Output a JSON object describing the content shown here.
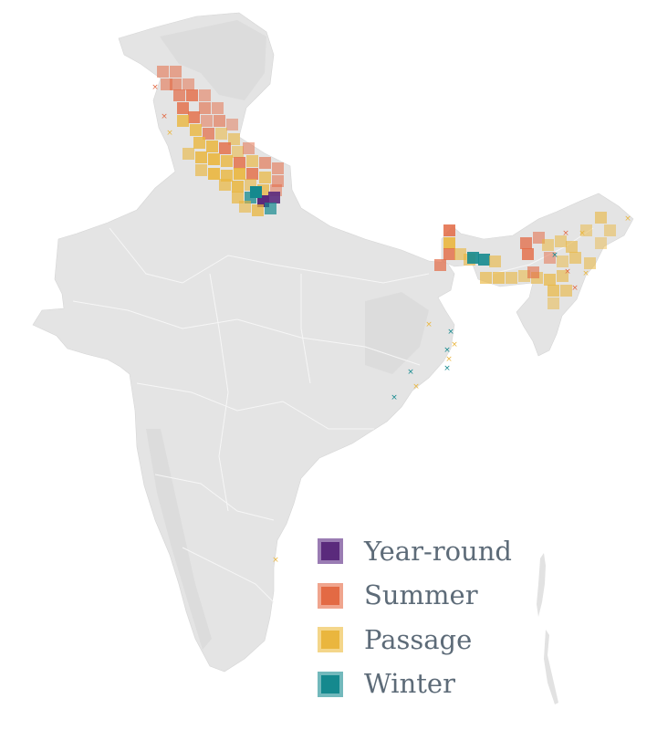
{
  "legend": {
    "items": [
      {
        "label": "Year-round",
        "color": "#5a2a7c",
        "border": "#9a7cb3"
      },
      {
        "label": "Summer",
        "color": "#e36a44",
        "border": "#f0a58e"
      },
      {
        "label": "Passage",
        "color": "#eab63e",
        "border": "#f4d68a"
      },
      {
        "label": "Winter",
        "color": "#15898e",
        "border": "#72b9bc"
      }
    ]
  },
  "colors": {
    "land": "#e4e4e4",
    "relief": "#d8d8d8",
    "borders": "#f6f6f6",
    "year_round": "#5a2a7c",
    "summer": "#e36a44",
    "passage": "#eab63e",
    "winter": "#15898e"
  },
  "icons": {
    "point_record": "x-mark-icon"
  }
}
